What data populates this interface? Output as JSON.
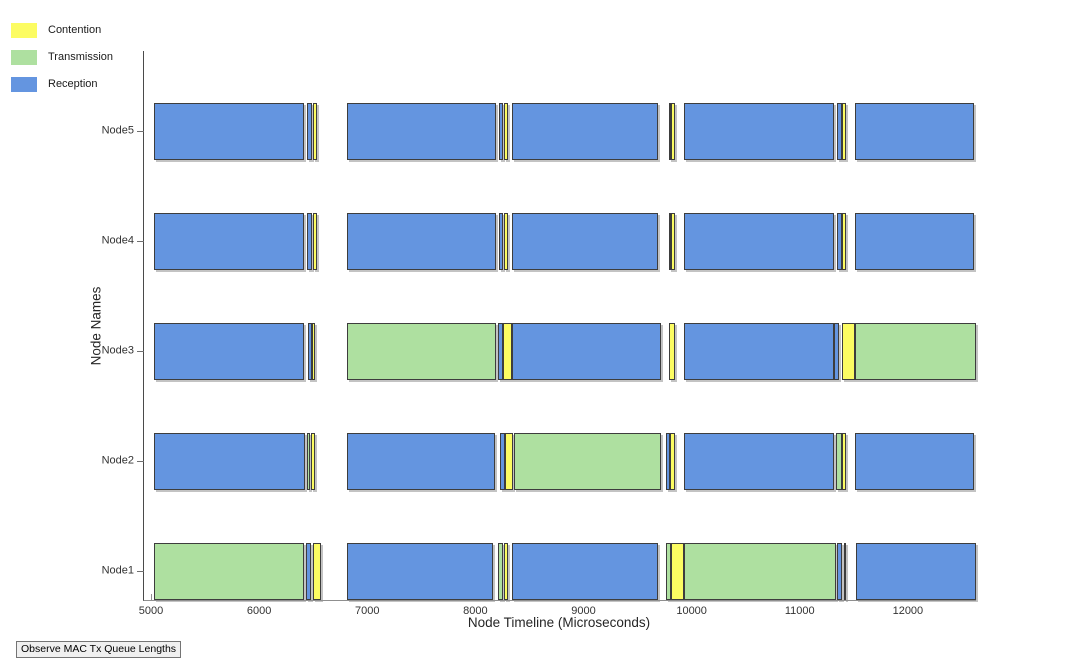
{
  "legend": {
    "items": [
      {
        "label": "Contention",
        "state": "contention",
        "color": "#fcfc62"
      },
      {
        "label": "Transmission",
        "state": "transmission",
        "color": "#aee0a0"
      },
      {
        "label": "Reception",
        "state": "reception",
        "color": "#6495e0"
      }
    ]
  },
  "button": {
    "label": "Observe MAC Tx Queue Lengths"
  },
  "chart_data": {
    "type": "bar",
    "subtype": "gantt-timeline",
    "title": "",
    "xlabel": "Node Timeline (Microseconds)",
    "ylabel": "Node Names",
    "xlim": [
      4935,
      12630
    ],
    "x_ticks": [
      5000,
      6000,
      7000,
      8000,
      9000,
      10000,
      11000,
      12000
    ],
    "categories_top_to_bottom": [
      "Node5",
      "Node4",
      "Node3",
      "Node2",
      "Node1"
    ],
    "state_colors": {
      "contention": "#fcfc62",
      "transmission": "#aee0a0",
      "reception": "#6495e0"
    },
    "grid": false,
    "legend_position": "outside-top-left",
    "rows": [
      {
        "node": "Node5",
        "segments": [
          {
            "state": "reception",
            "start": 5030,
            "end": 6415
          },
          {
            "state": "reception",
            "start": 6440,
            "end": 6490
          },
          {
            "state": "contention",
            "start": 6500,
            "end": 6535
          },
          {
            "state": "reception",
            "start": 6815,
            "end": 8190
          },
          {
            "state": "reception",
            "start": 8220,
            "end": 8255
          },
          {
            "state": "contention",
            "start": 8265,
            "end": 8300
          },
          {
            "state": "reception",
            "start": 8340,
            "end": 9690
          },
          {
            "state": "reception",
            "start": 9790,
            "end": 9808
          },
          {
            "state": "contention",
            "start": 9808,
            "end": 9845
          },
          {
            "state": "reception",
            "start": 9930,
            "end": 11315
          },
          {
            "state": "reception",
            "start": 11345,
            "end": 11390
          },
          {
            "state": "contention",
            "start": 11390,
            "end": 11425
          },
          {
            "state": "reception",
            "start": 11510,
            "end": 12610
          }
        ]
      },
      {
        "node": "Node4",
        "segments": [
          {
            "state": "reception",
            "start": 5030,
            "end": 6415
          },
          {
            "state": "reception",
            "start": 6440,
            "end": 6490
          },
          {
            "state": "contention",
            "start": 6500,
            "end": 6535
          },
          {
            "state": "reception",
            "start": 6815,
            "end": 8190
          },
          {
            "state": "reception",
            "start": 8220,
            "end": 8255
          },
          {
            "state": "contention",
            "start": 8265,
            "end": 8300
          },
          {
            "state": "reception",
            "start": 8340,
            "end": 9690
          },
          {
            "state": "reception",
            "start": 9790,
            "end": 9808
          },
          {
            "state": "contention",
            "start": 9808,
            "end": 9845
          },
          {
            "state": "reception",
            "start": 9930,
            "end": 11315
          },
          {
            "state": "reception",
            "start": 11345,
            "end": 11390
          },
          {
            "state": "contention",
            "start": 11390,
            "end": 11425
          },
          {
            "state": "reception",
            "start": 11510,
            "end": 12610
          }
        ]
      },
      {
        "node": "Node3",
        "segments": [
          {
            "state": "reception",
            "start": 5030,
            "end": 6415
          },
          {
            "state": "reception",
            "start": 6450,
            "end": 6488
          },
          {
            "state": "contention",
            "start": 6488,
            "end": 6517
          },
          {
            "state": "transmission",
            "start": 6815,
            "end": 8190
          },
          {
            "state": "reception",
            "start": 8210,
            "end": 8255
          },
          {
            "state": "contention",
            "start": 8255,
            "end": 8340
          },
          {
            "state": "reception",
            "start": 8340,
            "end": 9715
          },
          {
            "state": "contention",
            "start": 9790,
            "end": 9845
          },
          {
            "state": "reception",
            "start": 9930,
            "end": 11315
          },
          {
            "state": "reception",
            "start": 11317,
            "end": 11360
          },
          {
            "state": "contention",
            "start": 11390,
            "end": 11510
          },
          {
            "state": "transmission",
            "start": 11510,
            "end": 12630
          }
        ]
      },
      {
        "node": "Node2",
        "segments": [
          {
            "state": "reception",
            "start": 5030,
            "end": 6425
          },
          {
            "state": "transmission",
            "start": 6440,
            "end": 6470
          },
          {
            "state": "contention",
            "start": 6480,
            "end": 6517
          },
          {
            "state": "reception",
            "start": 6815,
            "end": 8180
          },
          {
            "state": "reception",
            "start": 8225,
            "end": 8275
          },
          {
            "state": "contention",
            "start": 8275,
            "end": 8350
          },
          {
            "state": "transmission",
            "start": 8357,
            "end": 9715
          },
          {
            "state": "reception",
            "start": 9760,
            "end": 9798
          },
          {
            "state": "contention",
            "start": 9798,
            "end": 9845
          },
          {
            "state": "reception",
            "start": 9930,
            "end": 11315
          },
          {
            "state": "transmission",
            "start": 11335,
            "end": 11390
          },
          {
            "state": "contention",
            "start": 11390,
            "end": 11425
          },
          {
            "state": "reception",
            "start": 11510,
            "end": 12610
          }
        ]
      },
      {
        "node": "Node1",
        "segments": [
          {
            "state": "transmission",
            "start": 5030,
            "end": 6415
          },
          {
            "state": "reception",
            "start": 6435,
            "end": 6480
          },
          {
            "state": "contention",
            "start": 6495,
            "end": 6570
          },
          {
            "state": "reception",
            "start": 6815,
            "end": 8160
          },
          {
            "state": "transmission",
            "start": 8210,
            "end": 8260
          },
          {
            "state": "contention",
            "start": 8260,
            "end": 8305
          },
          {
            "state": "reception",
            "start": 8340,
            "end": 9690
          },
          {
            "state": "transmission",
            "start": 9760,
            "end": 9808
          },
          {
            "state": "contention",
            "start": 9808,
            "end": 9930
          },
          {
            "state": "transmission",
            "start": 9930,
            "end": 11335
          },
          {
            "state": "reception",
            "start": 11345,
            "end": 11390
          },
          {
            "state": "contention",
            "start": 11410,
            "end": 11427
          },
          {
            "state": "reception",
            "start": 11520,
            "end": 12630
          }
        ]
      }
    ]
  }
}
